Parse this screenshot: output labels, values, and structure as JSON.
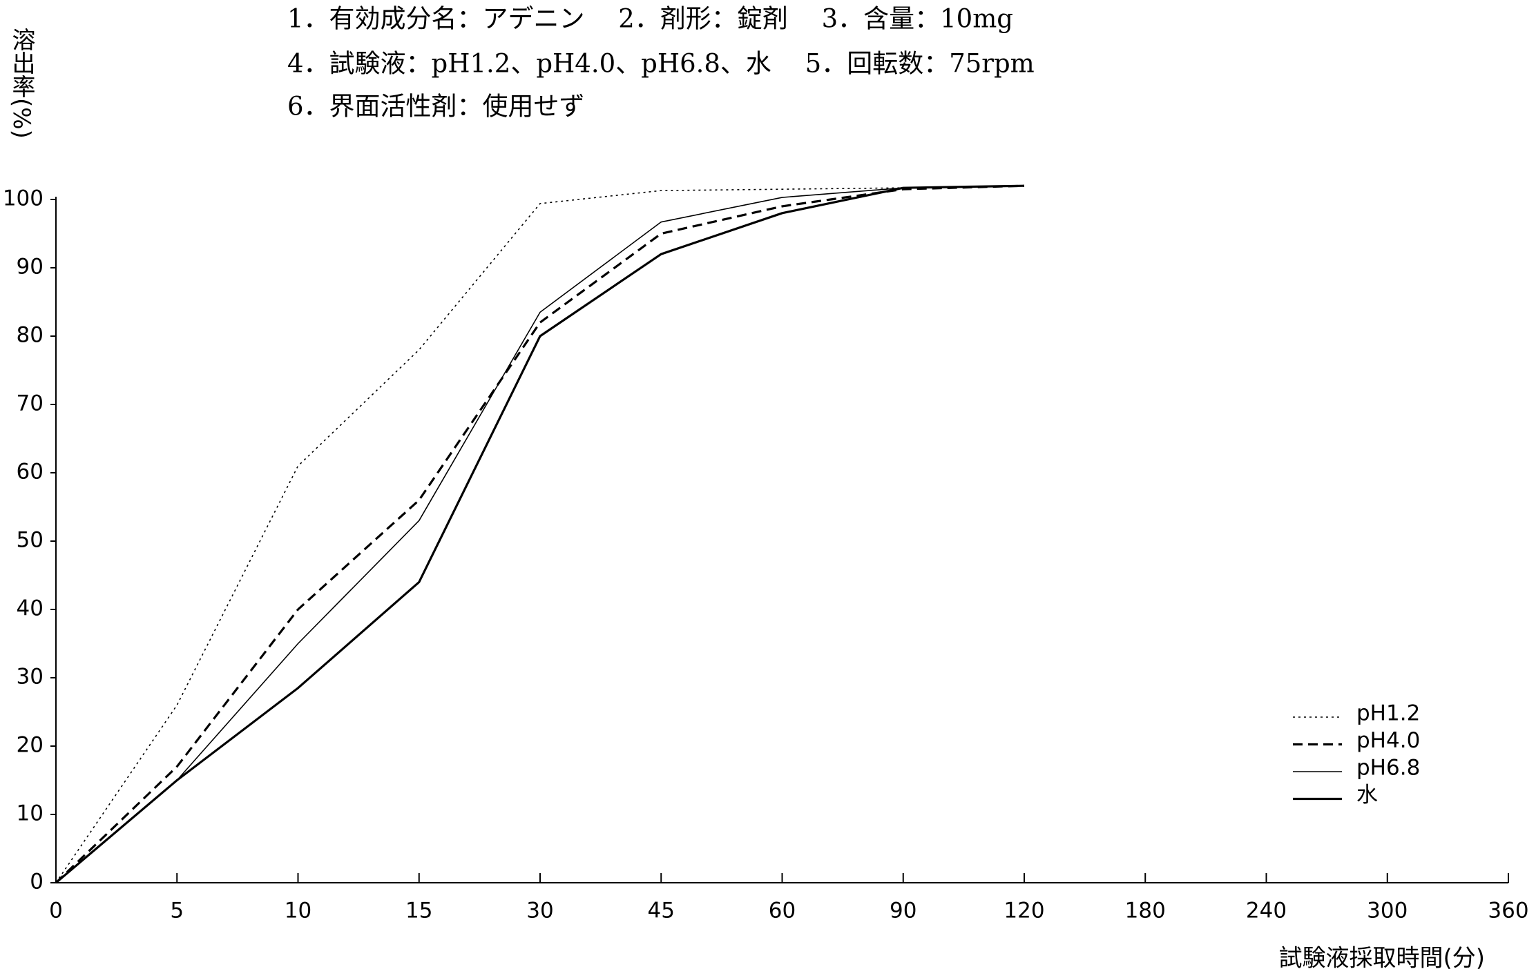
{
  "chart_data": {
    "type": "line",
    "annotations": [
      "1．有効成分名：アデニン　 2．剤形：錠剤　 3．含量：10mg",
      "4．試験液：pH1.2、pH4.0、pH6.8、水　 5．回転数：75rpm",
      "6．界面活性剤：使用せず"
    ],
    "y_label": "溶出率(%)",
    "x_label": "試験液採取時間(分)",
    "categories": [
      0,
      5,
      10,
      15,
      30,
      45,
      60,
      90,
      120,
      180,
      240,
      300,
      360
    ],
    "ylim": [
      0,
      100
    ],
    "yticks": [
      0,
      10,
      20,
      30,
      40,
      50,
      60,
      70,
      80,
      90,
      100
    ],
    "legend": "lower right",
    "series": [
      {
        "name": "pH1.2",
        "color": "#000000",
        "dash": "dotted",
        "width": "thin",
        "values": [
          0,
          26,
          61,
          78,
          99.4,
          101.3,
          101.5,
          101.7,
          102,
          null,
          null,
          null,
          null
        ]
      },
      {
        "name": "pH4.0",
        "color": "#000000",
        "dash": "dashed",
        "width": "thick",
        "values": [
          0,
          17,
          40,
          56,
          82,
          95,
          99,
          101.5,
          102,
          null,
          null,
          null,
          null
        ]
      },
      {
        "name": "pH6.8",
        "color": "#000000",
        "dash": "solid",
        "width": "thin",
        "values": [
          0,
          15,
          35,
          53,
          83.5,
          96.7,
          100.3,
          101.7,
          102,
          null,
          null,
          null,
          null
        ]
      },
      {
        "name": "水",
        "color": "#000000",
        "dash": "solid",
        "width": "thick",
        "values": [
          0,
          15,
          28.5,
          44,
          80,
          92,
          98,
          101.7,
          102,
          null,
          null,
          null,
          null
        ]
      }
    ]
  }
}
